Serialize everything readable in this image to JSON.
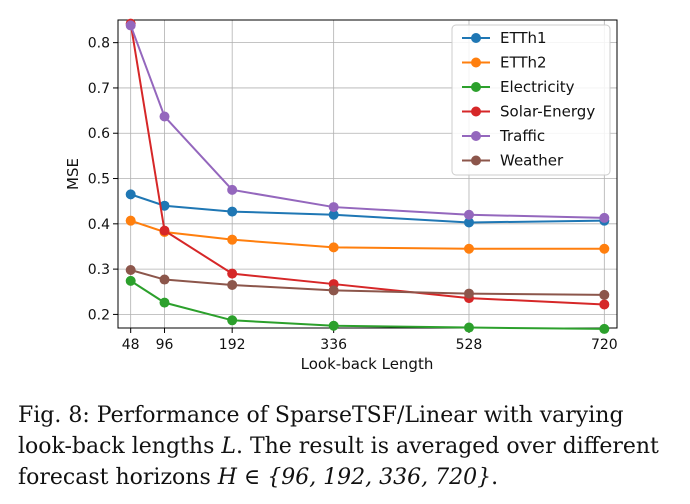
{
  "chart_data": {
    "type": "line",
    "title": "",
    "xlabel": "Look-back Length",
    "ylabel": "MSE",
    "x": [
      48,
      96,
      192,
      336,
      528,
      720
    ],
    "x_tick_labels": [
      "48",
      "96",
      "192",
      "336",
      "528",
      "720"
    ],
    "xlim": [
      30,
      738
    ],
    "ylim": [
      0.17,
      0.85
    ],
    "y_ticks": [
      0.2,
      0.3,
      0.4,
      0.5,
      0.6,
      0.7,
      0.8
    ],
    "y_tick_labels": [
      "0.2",
      "0.3",
      "0.4",
      "0.5",
      "0.6",
      "0.7",
      "0.8"
    ],
    "grid": true,
    "legend_position": "top-right",
    "series": [
      {
        "name": "ETTh1",
        "color": "#1f77b4",
        "values": [
          0.465,
          0.44,
          0.427,
          0.42,
          0.403,
          0.407
        ]
      },
      {
        "name": "ETTh2",
        "color": "#ff7f0e",
        "values": [
          0.407,
          0.382,
          0.365,
          0.348,
          0.345,
          0.345
        ]
      },
      {
        "name": "Electricity",
        "color": "#2ca02c",
        "values": [
          0.274,
          0.226,
          0.187,
          0.175,
          0.171,
          0.168
        ]
      },
      {
        "name": "Solar-Energy",
        "color": "#d62728",
        "values": [
          0.842,
          0.385,
          0.29,
          0.267,
          0.236,
          0.222
        ]
      },
      {
        "name": "Traffic",
        "color": "#9467bd",
        "values": [
          0.838,
          0.637,
          0.475,
          0.437,
          0.42,
          0.413
        ]
      },
      {
        "name": "Weather",
        "color": "#8c564b",
        "values": [
          0.298,
          0.277,
          0.265,
          0.253,
          0.246,
          0.243
        ]
      }
    ]
  },
  "caption": {
    "label": "Fig. 8:",
    "text_before": "Performance of SparseTSF/Linear with varying look-back lengths ",
    "symbol_L": "L",
    "text_middle": ". The result is averaged over different forecast horizons ",
    "horizon_math": "H ∈ {96, 192, 336, 720}",
    "text_after": "."
  }
}
